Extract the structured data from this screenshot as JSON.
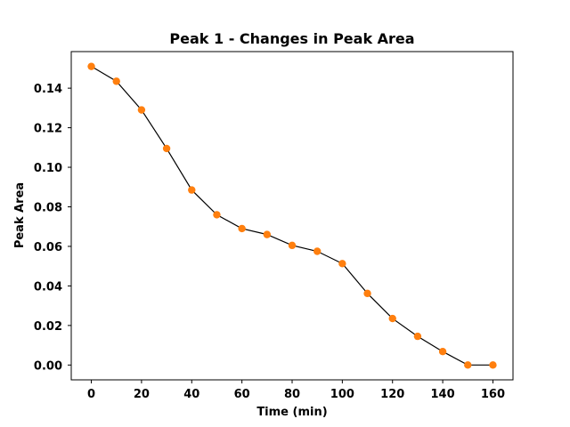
{
  "chart_data": {
    "type": "line",
    "title": "Peak 1 - Changes in Peak Area",
    "xlabel": "Time (min)",
    "ylabel": "Peak Area",
    "xlim": [
      -8,
      168
    ],
    "ylim": [
      -0.0075,
      0.1585
    ],
    "xticks": [
      0,
      20,
      40,
      60,
      80,
      100,
      120,
      140,
      160
    ],
    "xtick_labels": [
      "0",
      "20",
      "40",
      "60",
      "80",
      "100",
      "120",
      "140",
      "160"
    ],
    "yticks": [
      0.0,
      0.02,
      0.04,
      0.06,
      0.08,
      0.1,
      0.12,
      0.14
    ],
    "ytick_labels": [
      "0.00",
      "0.02",
      "0.04",
      "0.06",
      "0.08",
      "0.10",
      "0.12",
      "0.14"
    ],
    "grid": false,
    "legend": "none",
    "colors": {
      "line": "#000000",
      "marker": "#ff7f0e",
      "axes": "#000000",
      "background": "#ffffff"
    },
    "series": [
      {
        "x": [
          0,
          10,
          20,
          30,
          40,
          50,
          60,
          70,
          80,
          90,
          100,
          110,
          120,
          130,
          140,
          150,
          160
        ],
        "y": [
          0.151,
          0.1435,
          0.129,
          0.1095,
          0.0885,
          0.076,
          0.069,
          0.066,
          0.0605,
          0.0575,
          0.0513,
          0.0362,
          0.0235,
          0.0145,
          0.0068,
          0.0,
          0.0
        ]
      }
    ]
  }
}
